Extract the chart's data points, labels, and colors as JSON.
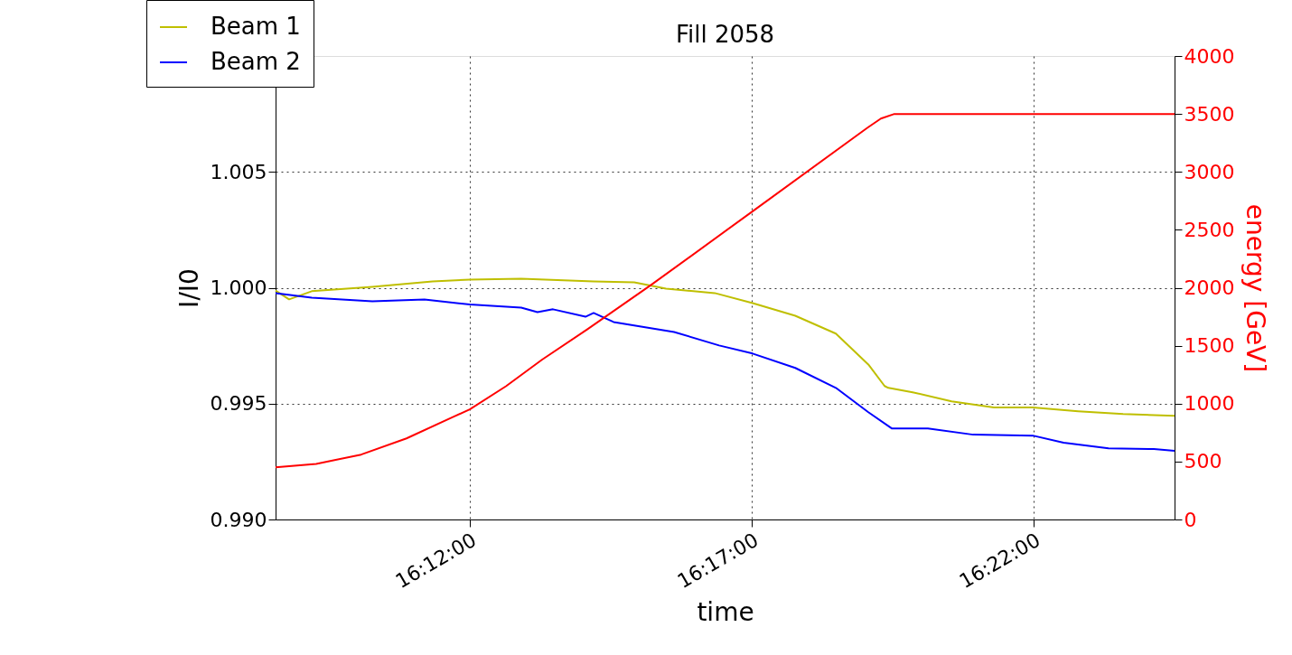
{
  "chart_data": {
    "type": "line",
    "title": "Fill 2058",
    "xlabel": "time",
    "ylabel": "I/I0",
    "y2label": "energy [GeV]",
    "xlim": [
      16.1426,
      16.4083
    ],
    "xticks": [
      {
        "value": 16.2,
        "label": "16:12:00"
      },
      {
        "value": 16.28333,
        "label": "16:17:00"
      },
      {
        "value": 16.36667,
        "label": "16:22:00"
      }
    ],
    "ylim": [
      0.99,
      1.01
    ],
    "yticks": [
      {
        "value": 0.99,
        "label": "0.990"
      },
      0.995,
      {
        "value": 1.0,
        "label": "1.000"
      },
      1.005
    ],
    "y2lim": [
      0,
      4000
    ],
    "y2ticks": [
      0,
      500,
      1000,
      1500,
      2000,
      2500,
      3000,
      3500,
      4000
    ],
    "grid": true,
    "legend": "top left",
    "line_style": "solid",
    "marker": "none",
    "series": [
      {
        "name": "Beam 1",
        "color": "#bfbf00",
        "x": [
          16.1426,
          16.1466,
          16.1533,
          16.1712,
          16.189,
          16.2,
          16.2152,
          16.2366,
          16.2486,
          16.258,
          16.2724,
          16.2836,
          16.2962,
          16.3082,
          16.3178,
          16.3226,
          16.3237,
          16.3309,
          16.3424,
          16.3549,
          16.3664,
          16.3798,
          16.3931,
          16.4083
        ],
        "values": [
          0.99988,
          0.9995,
          0.99985,
          1.00004,
          1.00027,
          1.00035,
          1.00039,
          1.00027,
          1.00023,
          0.99996,
          0.99977,
          0.99934,
          0.99879,
          0.99802,
          0.99669,
          0.99576,
          0.99568,
          0.99549,
          0.9951,
          0.99483,
          0.99483,
          0.99467,
          0.99455,
          0.99447
        ]
      },
      {
        "name": "Beam 2",
        "color": "#0000ff",
        "x": [
          16.1426,
          16.1533,
          16.1712,
          16.1866,
          16.2,
          16.2152,
          16.22,
          16.2246,
          16.2342,
          16.2366,
          16.2425,
          16.2604,
          16.2737,
          16.2836,
          16.2962,
          16.3082,
          16.3178,
          16.3247,
          16.3354,
          16.3488,
          16.3664,
          16.3755,
          16.3888,
          16.4022,
          16.4083
        ],
        "values": [
          0.99977,
          0.99957,
          0.99942,
          0.99949,
          0.99928,
          0.99914,
          0.99895,
          0.99907,
          0.99875,
          0.99891,
          0.99852,
          0.99809,
          0.99751,
          0.99716,
          0.99654,
          0.99568,
          0.99463,
          0.99393,
          0.99393,
          0.99366,
          0.99362,
          0.99331,
          0.99307,
          0.99304,
          0.99296
        ]
      },
      {
        "color": "#ff0000",
        "axis": "y2",
        "x": [
          16.1426,
          16.1546,
          16.1679,
          16.1813,
          16.1947,
          16.2,
          16.2107,
          16.2214,
          16.2347,
          16.2534,
          16.2836,
          16.3175,
          16.3215,
          16.3255,
          16.4083
        ],
        "values": [
          450,
          480,
          560,
          700,
          880,
          950,
          1150,
          1380,
          1640,
          2020,
          2660,
          3380,
          3460,
          3500,
          3500
        ]
      }
    ]
  }
}
